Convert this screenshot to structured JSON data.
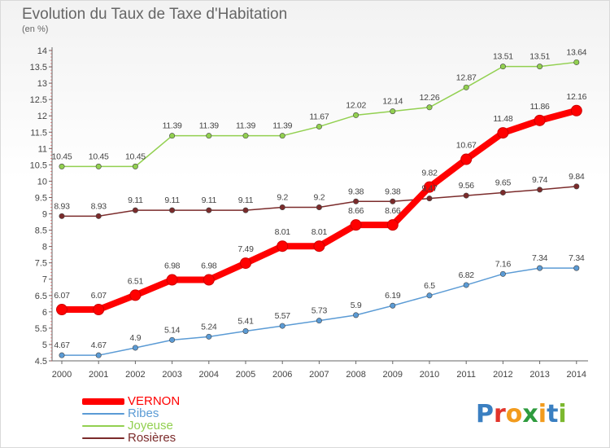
{
  "title": "Evolution du Taux de Taxe d'Habitation",
  "subtitle": "(en %)",
  "logo_text": "Proxiti",
  "logo_colors": [
    "#3a7fc1",
    "#e2342b",
    "#f29b1d",
    "#2e9b3e",
    "#f29b1d",
    "#3a7fc1",
    "#7cb82f"
  ],
  "chart_data": {
    "type": "line",
    "title": "Evolution du Taux de Taxe d'Habitation",
    "ylabel": "(en %)",
    "xlabel": "",
    "x": [
      "2000",
      "2001",
      "2002",
      "2003",
      "2004",
      "2005",
      "2006",
      "2007",
      "2008",
      "2009",
      "2010",
      "2011",
      "2012",
      "2013",
      "2014"
    ],
    "ylim": [
      4.5,
      14
    ],
    "yticks": [
      "4.5",
      "5",
      "5.5",
      "6",
      "6.5",
      "7",
      "7.5",
      "8",
      "8.5",
      "9",
      "9.5",
      "10",
      "10.5",
      "11",
      "11.5",
      "12",
      "12.5",
      "13",
      "13.5",
      "14"
    ],
    "grid": false,
    "legend_position": "bottom-left",
    "series": [
      {
        "name": "VERNON",
        "color": "#ff0000",
        "values": [
          6.07,
          6.07,
          6.51,
          6.98,
          6.98,
          7.49,
          8.01,
          8.01,
          8.66,
          8.66,
          9.82,
          10.67,
          11.48,
          11.86,
          12.16
        ],
        "labels": [
          "6.07",
          "6.07",
          "6.51",
          "6.98",
          "6.98",
          "7.49",
          "8.01",
          "8.01",
          "8.66",
          "8.66",
          "9.82",
          "10.67",
          "11.48",
          "11.86",
          "12.16"
        ]
      },
      {
        "name": "Ribes",
        "color": "#5b9bd5",
        "values": [
          4.67,
          4.67,
          4.9,
          5.14,
          5.24,
          5.41,
          5.57,
          5.73,
          5.9,
          6.19,
          6.5,
          6.82,
          7.16,
          7.34,
          7.34
        ],
        "labels": [
          "4.67",
          "4.67",
          "4.9",
          "5.14",
          "5.24",
          "5.41",
          "5.57",
          "5.73",
          "5.9",
          "6.19",
          "6.5",
          "6.82",
          "7.16",
          "7.34",
          "7.34"
        ]
      },
      {
        "name": "Joyeuse",
        "color": "#92d050",
        "values": [
          10.45,
          10.45,
          10.45,
          11.39,
          11.39,
          11.39,
          11.39,
          11.67,
          12.02,
          12.14,
          12.26,
          12.87,
          13.51,
          13.51,
          13.64
        ],
        "labels": [
          "10.45",
          "10.45",
          "10.45",
          "11.39",
          "11.39",
          "11.39",
          "11.39",
          "11.67",
          "12.02",
          "12.14",
          "12.26",
          "12.87",
          "13.51",
          "13.51",
          "13.64"
        ]
      },
      {
        "name": "Rosières",
        "color": "#7b2b2b",
        "values": [
          8.93,
          8.93,
          9.11,
          9.11,
          9.11,
          9.11,
          9.2,
          9.2,
          9.38,
          9.38,
          9.47,
          9.56,
          9.65,
          9.74,
          9.84
        ],
        "labels": [
          "8.93",
          "8.93",
          "9.11",
          "9.11",
          "9.11",
          "9.11",
          "9.2",
          "9.2",
          "9.38",
          "9.38",
          "9.47",
          "9.56",
          "9.65",
          "9.74",
          "9.84"
        ]
      }
    ]
  }
}
